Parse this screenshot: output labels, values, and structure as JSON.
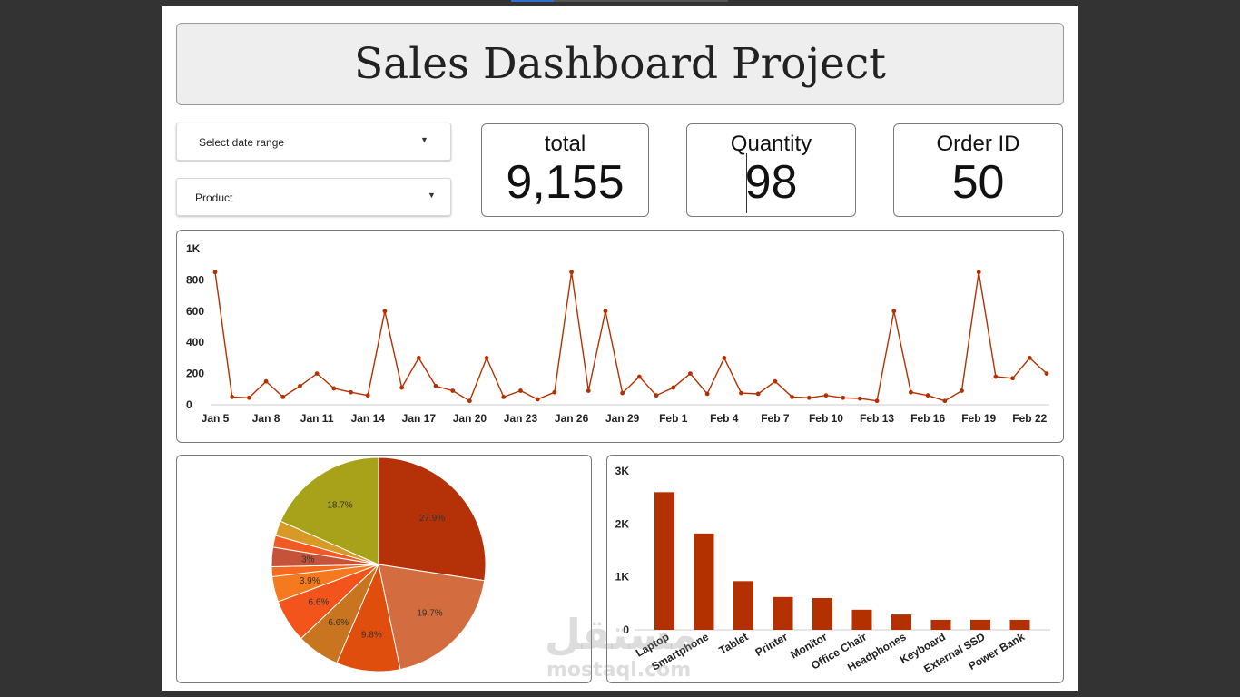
{
  "title": "Sales Dashboard Project",
  "filters": {
    "date_range_label": "Select date range",
    "product_label": "Product"
  },
  "kpis": {
    "total_label": "total",
    "total_value": "9,155",
    "quantity_label": "Quantity",
    "quantity_value": "98",
    "order_label": "Order ID",
    "order_value": "50"
  },
  "watermark": {
    "arabic": "مستقل",
    "latin": "mostaql.com"
  },
  "colors": {
    "accent": "#b33000"
  },
  "chart_data": [
    {
      "type": "line",
      "title": "",
      "xlabel": "",
      "ylabel": "",
      "ylim": [
        0,
        1000
      ],
      "yticks": [
        "0",
        "200",
        "400",
        "600",
        "800",
        "1K"
      ],
      "x_tick_labels": [
        "Jan 5",
        "Jan 8",
        "Jan 11",
        "Jan 14",
        "Jan 17",
        "Jan 20",
        "Jan 23",
        "Jan 26",
        "Jan 29",
        "Feb 1",
        "Feb 4",
        "Feb 7",
        "Feb 10",
        "Feb 13",
        "Feb 16",
        "Feb 19",
        "Feb 22"
      ],
      "grid": false,
      "color": "#b33000",
      "series": [
        {
          "values": [
            850,
            50,
            45,
            150,
            50,
            120,
            200,
            105,
            80,
            60,
            600,
            110,
            300,
            120,
            90,
            25,
            300,
            50,
            90,
            35,
            80,
            850,
            90,
            600,
            75,
            180,
            60,
            110,
            200,
            70,
            300,
            75,
            70,
            150,
            50,
            45,
            60,
            45,
            40,
            25,
            600,
            80,
            60,
            25,
            90,
            850,
            180,
            170,
            300,
            200
          ]
        }
      ]
    },
    {
      "type": "pie",
      "slices": [
        {
          "label": "27.9%",
          "value": 27.9,
          "color": "#b53209"
        },
        {
          "label": "19.7%",
          "value": 19.7,
          "color": "#d36d3f"
        },
        {
          "label": "9.8%",
          "value": 9.8,
          "color": "#e04e0e"
        },
        {
          "label": "6.6%",
          "value": 6.6,
          "color": "#c9751f"
        },
        {
          "label": "6.6%",
          "value": 6.6,
          "color": "#f2541b"
        },
        {
          "label": "3.9%",
          "value": 3.9,
          "color": "#f57a1f"
        },
        {
          "label": "",
          "value": 1.5,
          "color": "#f56a1e"
        },
        {
          "label": "3%",
          "value": 3.0,
          "color": "#c5533a"
        },
        {
          "label": "",
          "value": 1.8,
          "color": "#f25a24"
        },
        {
          "label": "",
          "value": 2.3,
          "color": "#d89a26"
        },
        {
          "label": "18.7%",
          "value": 18.7,
          "color": "#a8a11a"
        }
      ]
    },
    {
      "type": "bar",
      "categories": [
        "Laptop",
        "Smartphone",
        "Tablet",
        "Printer",
        "Monitor",
        "Office Chair",
        "Headphones",
        "Keyboard",
        "External SSD",
        "Power Bank"
      ],
      "values": [
        2600,
        1820,
        920,
        620,
        600,
        380,
        290,
        190,
        190,
        190
      ],
      "ylim": [
        0,
        3000
      ],
      "yticks": [
        "0",
        "1K",
        "2K",
        "3K"
      ],
      "color": "#b33000"
    }
  ]
}
